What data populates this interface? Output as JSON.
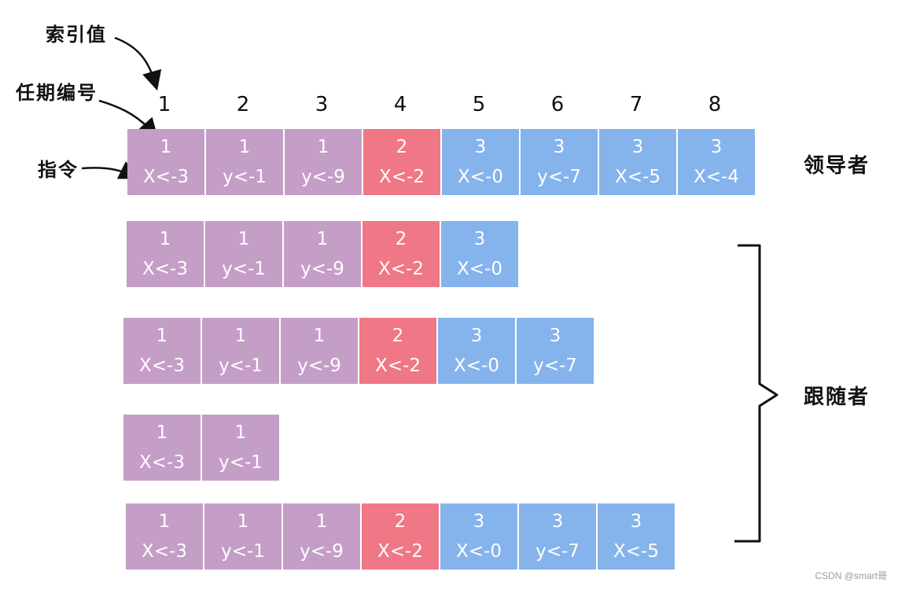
{
  "annotations": {
    "index_label": "索引值",
    "term_label": "任期编号",
    "command_label": "指令"
  },
  "index_numbers": [
    "1",
    "2",
    "3",
    "4",
    "5",
    "6",
    "7",
    "8"
  ],
  "roles": {
    "leader": "领导者",
    "follower": "跟随者"
  },
  "leader_log": [
    {
      "term": "1",
      "cmd": "X<-3"
    },
    {
      "term": "1",
      "cmd": "y<-1"
    },
    {
      "term": "1",
      "cmd": "y<-9"
    },
    {
      "term": "2",
      "cmd": "X<-2"
    },
    {
      "term": "3",
      "cmd": "X<-0"
    },
    {
      "term": "3",
      "cmd": "y<-7"
    },
    {
      "term": "3",
      "cmd": "X<-5"
    },
    {
      "term": "3",
      "cmd": "X<-4"
    }
  ],
  "follower_logs": [
    [
      {
        "term": "1",
        "cmd": "X<-3"
      },
      {
        "term": "1",
        "cmd": "y<-1"
      },
      {
        "term": "1",
        "cmd": "y<-9"
      },
      {
        "term": "2",
        "cmd": "X<-2"
      },
      {
        "term": "3",
        "cmd": "X<-0"
      }
    ],
    [
      {
        "term": "1",
        "cmd": "X<-3"
      },
      {
        "term": "1",
        "cmd": "y<-1"
      },
      {
        "term": "1",
        "cmd": "y<-9"
      },
      {
        "term": "2",
        "cmd": "X<-2"
      },
      {
        "term": "3",
        "cmd": "X<-0"
      },
      {
        "term": "3",
        "cmd": "y<-7"
      }
    ],
    [
      {
        "term": "1",
        "cmd": "X<-3"
      },
      {
        "term": "1",
        "cmd": "y<-1"
      }
    ],
    [
      {
        "term": "1",
        "cmd": "X<-3"
      },
      {
        "term": "1",
        "cmd": "y<-1"
      },
      {
        "term": "1",
        "cmd": "y<-9"
      },
      {
        "term": "2",
        "cmd": "X<-2"
      },
      {
        "term": "3",
        "cmd": "X<-0"
      },
      {
        "term": "3",
        "cmd": "y<-7"
      },
      {
        "term": "3",
        "cmd": "X<-5"
      }
    ]
  ],
  "colors": {
    "term_1": "#c49ec6",
    "term_2": "#f07785",
    "term_3": "#85b3ec"
  },
  "watermark": "CSDN @smart哥"
}
